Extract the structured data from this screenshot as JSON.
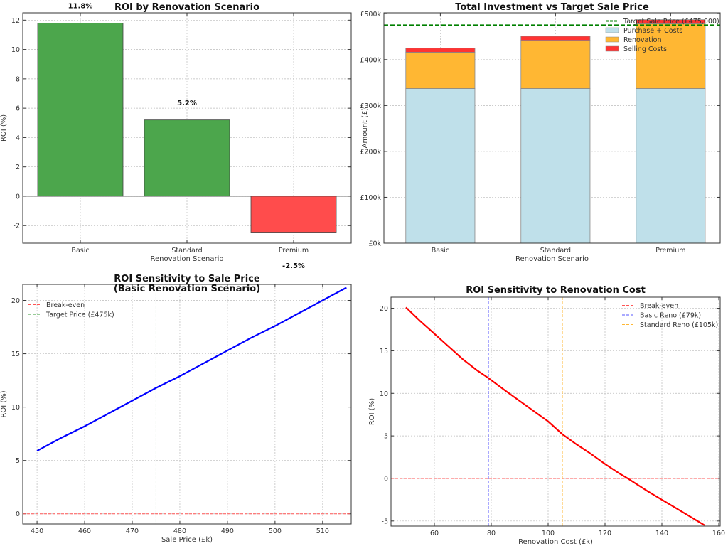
{
  "chart_data": [
    {
      "type": "bar",
      "title": "ROI by Renovation Scenario",
      "xlabel": "Renovation Scenario",
      "ylabel": "ROI (%)",
      "categories": [
        "Basic",
        "Standard",
        "Premium"
      ],
      "values": [
        11.8,
        5.2,
        -2.5
      ],
      "data_labels": [
        "11.8%",
        "5.2%",
        "-2.5%"
      ],
      "bar_colors": [
        "#4ca64c",
        "#4ca64c",
        "#ff4c4c"
      ],
      "yticks": [
        -2,
        0,
        2,
        4,
        6,
        8,
        10,
        12
      ],
      "ylim": [
        -3.2,
        12.5
      ],
      "grid": true
    },
    {
      "type": "bar",
      "stacked": true,
      "title": "Total Investment vs Target Sale Price",
      "xlabel": "Renovation Scenario",
      "ylabel": "Amount (£)",
      "categories": [
        "Basic",
        "Standard",
        "Premium"
      ],
      "series": [
        {
          "name": "Purchase + Costs",
          "values": [
            337000,
            337000,
            337000
          ],
          "color": "#bfe0ea"
        },
        {
          "name": "Renovation",
          "values": [
            79000,
            105000,
            141000
          ],
          "color": "#ffb733"
        },
        {
          "name": "Selling Costs",
          "values": [
            9000,
            9000,
            9000
          ],
          "color": "#ff3333"
        }
      ],
      "reference_line": {
        "name": "Target Sale Price (£475,000)",
        "value": 475000,
        "color": "#008000"
      },
      "yticks": [
        0,
        100000,
        200000,
        300000,
        400000,
        500000
      ],
      "ytick_labels": [
        "£0k",
        "£100k",
        "£200k",
        "£300k",
        "£400k",
        "£500k"
      ],
      "ylim": [
        0,
        502000
      ],
      "legend": "top-right",
      "grid": true
    },
    {
      "type": "line",
      "title": "ROI Sensitivity to Sale Price",
      "subtitle": "(Basic Renovation Scenario)",
      "xlabel": "Sale Price (£k)",
      "ylabel": "ROI (%)",
      "x": [
        450,
        455,
        460,
        465,
        470,
        475,
        480,
        485,
        490,
        495,
        500,
        505,
        510,
        515
      ],
      "y": [
        5.9,
        7.1,
        8.2,
        9.4,
        10.6,
        11.8,
        12.9,
        14.1,
        15.3,
        16.5,
        17.6,
        18.8,
        20.0,
        21.2
      ],
      "line_color": "#0000ff",
      "reference_lines": [
        {
          "name": "Break-even",
          "axis": "y",
          "value": 0,
          "color": "#ff5555"
        },
        {
          "name": "Target Price (£475k)",
          "axis": "x",
          "value": 475,
          "color": "#339933"
        }
      ],
      "xticks": [
        450,
        460,
        470,
        480,
        490,
        500,
        510
      ],
      "yticks": [
        0,
        5,
        10,
        15,
        20
      ],
      "xlim": [
        447,
        516
      ],
      "ylim": [
        -0.95,
        21.5
      ],
      "legend": "top-left",
      "grid": true
    },
    {
      "type": "line",
      "title": "ROI Sensitivity to Renovation Cost",
      "xlabel": "Renovation Cost (£k)",
      "ylabel": "ROI (%)",
      "x": [
        50,
        55,
        60,
        65,
        70,
        75,
        79,
        85,
        90,
        95,
        100,
        105,
        110,
        115,
        120,
        125,
        128,
        135,
        140,
        145,
        150,
        155
      ],
      "y": [
        20.1,
        18.5,
        17.0,
        15.5,
        14.0,
        12.7,
        11.8,
        10.3,
        9.1,
        7.9,
        6.7,
        5.2,
        4.0,
        2.9,
        1.7,
        0.6,
        0.0,
        -1.5,
        -2.5,
        -3.5,
        -4.5,
        -5.5
      ],
      "line_color": "#ff0000",
      "reference_lines": [
        {
          "name": "Break-even",
          "axis": "y",
          "value": 0,
          "color": "#ff5555"
        },
        {
          "name": "Basic Reno (£79k)",
          "axis": "x",
          "value": 79,
          "color": "#5555ff"
        },
        {
          "name": "Standard Reno (£105k)",
          "axis": "x",
          "value": 105,
          "color": "#ffb733"
        }
      ],
      "xticks": [
        60,
        80,
        100,
        120,
        140,
        160
      ],
      "yticks": [
        -5,
        0,
        5,
        10,
        15,
        20
      ],
      "xlim": [
        44.75,
        160.5
      ],
      "ylim": [
        -5.6,
        21.3
      ],
      "legend": "top-right",
      "grid": true
    }
  ]
}
